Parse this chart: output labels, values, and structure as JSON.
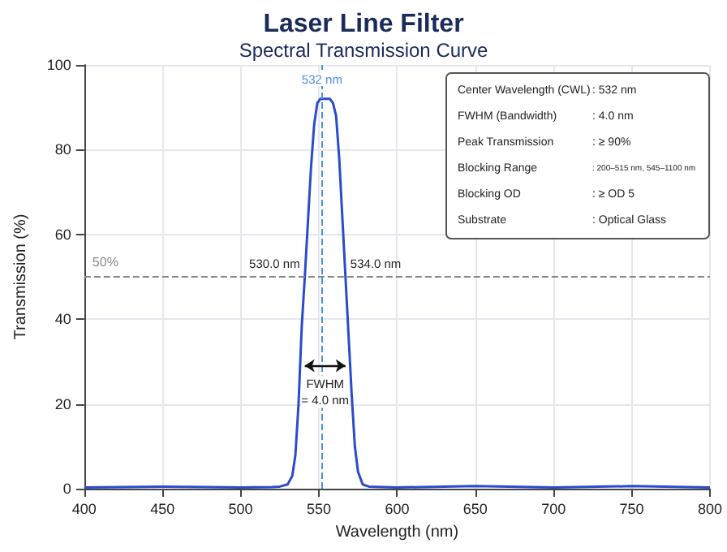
{
  "chart_data": {
    "type": "line",
    "title": "Laser Line Filter",
    "subtitle": "Spectral Transmission Curve",
    "xlabel": "Wavelength (nm)",
    "ylabel": "Transmission (%)",
    "x": [
      400,
      450,
      500,
      520,
      525,
      530,
      533,
      535,
      537,
      539,
      541,
      543,
      545,
      547,
      549,
      551,
      553,
      555,
      557,
      559,
      561,
      563,
      565,
      567,
      569,
      571,
      573,
      575,
      578,
      582,
      600,
      650,
      700,
      750,
      800
    ],
    "series": [
      {
        "color": "#2b4bcc",
        "values": [
          0.3,
          0.5,
          0.3,
          0.4,
          0.5,
          1,
          3,
          8,
          20,
          38,
          50,
          63,
          76,
          86,
          91,
          92,
          92,
          92,
          92,
          91,
          88,
          78,
          64,
          50,
          36,
          22,
          10,
          4,
          1,
          0.5,
          0.3,
          0.6,
          0.3,
          0.6,
          0.3
        ]
      }
    ],
    "xlim": [
      400,
      800
    ],
    "ylim": [
      0,
      100
    ],
    "xticks": [
      400,
      450,
      500,
      550,
      600,
      650,
      700,
      750,
      800
    ],
    "yticks": [
      0,
      20,
      40,
      60,
      80,
      100
    ],
    "grid": true,
    "marker": "none",
    "line_style": "solid",
    "ref_lines": [
      {
        "axis": "y",
        "value": 50,
        "label": "50%",
        "color": "#888888",
        "line_style": "dashed"
      },
      {
        "axis": "x",
        "value": 552,
        "label": "532 nm",
        "color": "#4a90e2",
        "line_style": "dashed"
      }
    ],
    "annotations": [
      {
        "text": "530.0 nm",
        "x": 541,
        "y": 50
      },
      {
        "text": "534.0 nm",
        "x": 567,
        "y": 50
      },
      {
        "text": "FWHM\n= 4.0 nm",
        "x": 554,
        "y": 29
      },
      "Center Wavelength (CWL) : 532 nm",
      "FWHM (Bandwidth) : 4.0 nm",
      "Peak Transmission : ≥ 90%",
      "Blocking Range : 200–515 nm, 545–1100 nm",
      "Blocking OD : ≥ OD 5",
      "Substrate : Optical Glass"
    ]
  }
}
